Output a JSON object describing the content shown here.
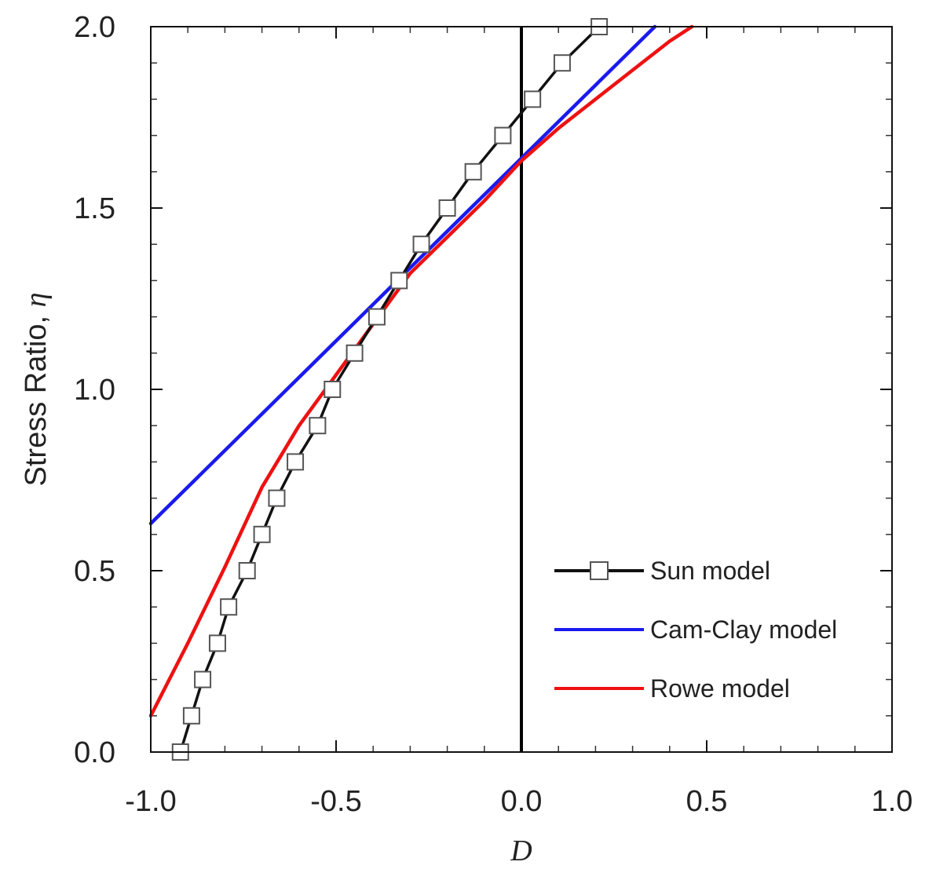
{
  "chart_data": {
    "type": "line",
    "title": "",
    "xlabel": "D",
    "ylabel_text": "Stress Ratio, ",
    "ylabel_symbol": "η",
    "xlim": [
      -1.0,
      1.0
    ],
    "ylim": [
      0.0,
      2.0
    ],
    "x_ticks": [
      -1.0,
      -0.5,
      0.0,
      0.5,
      1.0
    ],
    "x_tick_labels": [
      "-1.0",
      "-0.5",
      "0.0",
      "0.5",
      "1.0"
    ],
    "y_ticks": [
      0.0,
      0.5,
      1.0,
      1.5,
      2.0
    ],
    "y_tick_labels": [
      "0.0",
      "0.5",
      "1.0",
      "1.5",
      "2.0"
    ],
    "x_minor_step": 0.1,
    "y_minor_step": 0.1,
    "grid": false,
    "reference_line_x": 0.0,
    "legend_position": "bottom-right",
    "series": [
      {
        "name": "Sun model",
        "color": "#111111",
        "marker": "open-square",
        "x": [
          -0.92,
          -0.89,
          -0.86,
          -0.82,
          -0.79,
          -0.74,
          -0.7,
          -0.66,
          -0.61,
          -0.55,
          -0.51,
          -0.45,
          -0.39,
          -0.33,
          -0.27,
          -0.2,
          -0.13,
          -0.05,
          0.03,
          0.11,
          0.21
        ],
        "y": [
          0.0,
          0.1,
          0.2,
          0.3,
          0.4,
          0.5,
          0.6,
          0.7,
          0.8,
          0.9,
          1.0,
          1.1,
          1.2,
          1.3,
          1.4,
          1.5,
          1.6,
          1.7,
          1.8,
          1.9,
          2.0
        ]
      },
      {
        "name": "Cam-Clay model",
        "color": "#1a1aee",
        "marker": "none",
        "x": [
          -1.0,
          0.36
        ],
        "y": [
          0.63,
          2.0
        ]
      },
      {
        "name": "Rowe model",
        "color": "#ee1111",
        "marker": "none",
        "x": [
          -1.0,
          -0.9,
          -0.8,
          -0.7,
          -0.6,
          -0.5,
          -0.4,
          -0.3,
          -0.2,
          -0.1,
          0.0,
          0.1,
          0.2,
          0.3,
          0.4,
          0.46
        ],
        "y": [
          0.1,
          0.3,
          0.51,
          0.73,
          0.9,
          1.04,
          1.18,
          1.32,
          1.42,
          1.52,
          1.63,
          1.72,
          1.8,
          1.88,
          1.96,
          2.0
        ]
      }
    ]
  }
}
